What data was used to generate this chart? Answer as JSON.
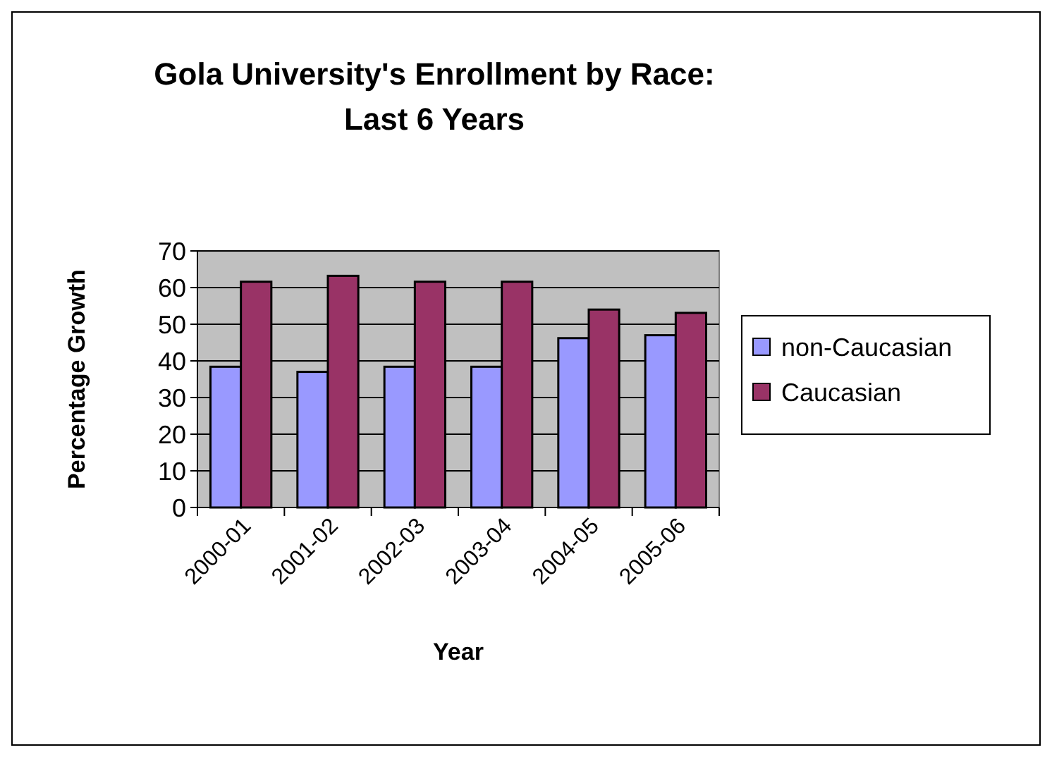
{
  "chart_data": {
    "type": "bar",
    "title": "Gola University's Enrollment by Race: Last 6 Years",
    "xlabel": "Year",
    "ylabel": "Percentage Growth",
    "categories": [
      "2000-01",
      "2001-02",
      "2002-03",
      "2003-04",
      "2004-05",
      "2005-06"
    ],
    "series": [
      {
        "name": "non-Caucasian",
        "color": "#9999ff",
        "values": [
          38.4,
          37,
          38.4,
          38.4,
          46.2,
          47
        ]
      },
      {
        "name": "Caucasian",
        "color": "#993366",
        "values": [
          61.6,
          63.2,
          61.6,
          61.6,
          54,
          53.1
        ]
      }
    ],
    "ylim": [
      0,
      70
    ],
    "yticks": [
      0,
      10,
      20,
      30,
      40,
      50,
      60,
      70
    ],
    "grid": "y",
    "legend": "right"
  }
}
